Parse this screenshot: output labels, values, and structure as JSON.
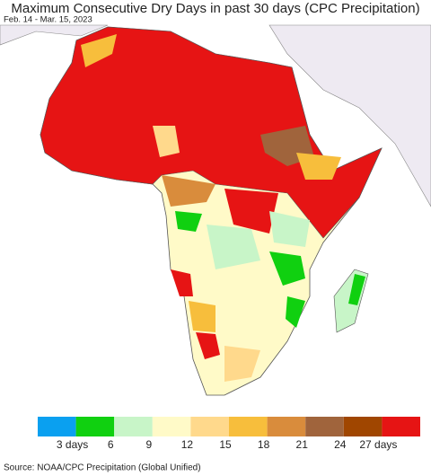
{
  "header": {
    "title": "Maximum Consecutive Dry Days in past 30 days (CPC Precipitation)",
    "subtitle": "Feb. 14 - Mar. 15, 2023"
  },
  "legend": {
    "colors": [
      "#0aa0f0",
      "#10d010",
      "#c8f5c8",
      "#fffac8",
      "#ffd98c",
      "#f7be3c",
      "#d98c3c",
      "#a0643c",
      "#a04600",
      "#e61414"
    ],
    "labels": [
      "3 days",
      "6",
      "9",
      "12",
      "15",
      "18",
      "21",
      "24",
      "27 days"
    ]
  },
  "footer": {
    "source": "Source: NOAA/CPC Precipitation (Global Unified)"
  }
}
